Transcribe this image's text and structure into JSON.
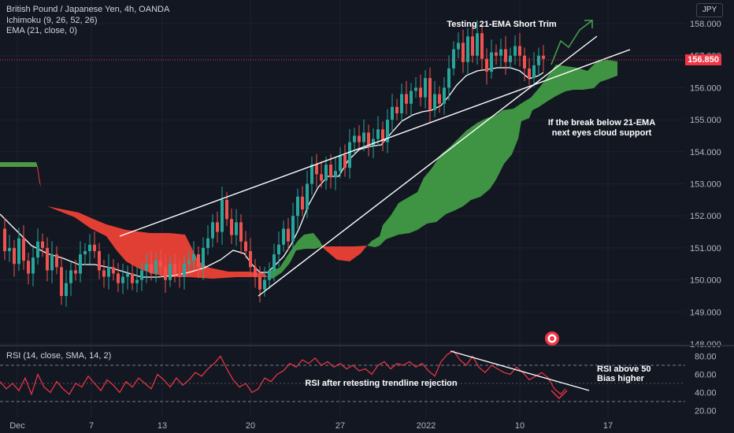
{
  "header": {
    "title": "British Pound / Japanese Yen, 4h, OANDA",
    "ichimoku": "Ichimoku (9, 26, 52, 26)",
    "ema": "EMA (21, close, 0)",
    "currency": "JPY"
  },
  "price_panel": {
    "last_price": "156.850",
    "y_ticks": [
      "158.000",
      "157.000",
      "156.000",
      "155.000",
      "154.000",
      "153.000",
      "152.000",
      "151.000",
      "150.000",
      "149.000",
      "148.000"
    ],
    "annotations": {
      "top": "Testing 21-EMA Short Trim",
      "cloud_line1": "If the break below 21-EMA",
      "cloud_line2": "next eyes cloud support"
    }
  },
  "rsi_panel": {
    "label": "RSI (14, close, SMA, 14, 2)",
    "y_ticks": [
      "80.00",
      "60.00",
      "40.00",
      "20.00"
    ],
    "annotations": {
      "trendline": "RSI after retesting trendline rejection",
      "bias_line1": "RSI above 50",
      "bias_line2": "Bias higher"
    }
  },
  "x_axis": {
    "ticks": [
      "Dec",
      "7",
      "13",
      "20",
      "27",
      "2022",
      "10",
      "17"
    ]
  },
  "colors": {
    "background": "#131722",
    "bull": "#26a69a",
    "bear": "#ef5350",
    "cloud_bull": "#43a047",
    "cloud_bear": "#f44336",
    "rsi": "#f23645",
    "price_tag": "#f23645"
  },
  "chart_data": {
    "type": "candlestick",
    "symbol": "GBPJPY",
    "timeframe": "4h",
    "ylim": [
      148.0,
      158.4
    ],
    "ohlc_close_path": [
      [
        0,
        151.6
      ],
      [
        6,
        150.9
      ],
      [
        12,
        151.0
      ],
      [
        18,
        150.5
      ],
      [
        24,
        151.3
      ],
      [
        30,
        150.6
      ],
      [
        36,
        150.2
      ],
      [
        42,
        150.7
      ],
      [
        48,
        151.2
      ],
      [
        54,
        151.0
      ],
      [
        60,
        150.3
      ],
      [
        66,
        150.8
      ],
      [
        72,
        150.4
      ],
      [
        78,
        149.5
      ],
      [
        84,
        149.9
      ],
      [
        90,
        150.3
      ],
      [
        96,
        150.2
      ],
      [
        102,
        150.8
      ],
      [
        108,
        150.9
      ],
      [
        114,
        151.1
      ],
      [
        120,
        150.9
      ],
      [
        126,
        150.3
      ],
      [
        132,
        150.1
      ],
      [
        138,
        150.4
      ],
      [
        144,
        150.2
      ],
      [
        150,
        149.9
      ],
      [
        156,
        150.1
      ],
      [
        162,
        150.2
      ],
      [
        168,
        149.9
      ],
      [
        174,
        150.0
      ],
      [
        180,
        150.3
      ],
      [
        186,
        150.5
      ],
      [
        192,
        150.2
      ],
      [
        198,
        150.6
      ],
      [
        204,
        150.4
      ],
      [
        210,
        150.0
      ],
      [
        216,
        150.5
      ],
      [
        222,
        150.2
      ],
      [
        228,
        150.1
      ],
      [
        234,
        150.5
      ],
      [
        240,
        150.6
      ],
      [
        246,
        150.8
      ],
      [
        252,
        150.4
      ],
      [
        258,
        151.0
      ],
      [
        264,
        151.3
      ],
      [
        270,
        151.8
      ],
      [
        276,
        151.5
      ],
      [
        282,
        152.5
      ],
      [
        288,
        151.9
      ],
      [
        294,
        151.4
      ],
      [
        300,
        151.8
      ],
      [
        306,
        151.2
      ],
      [
        312,
        150.9
      ],
      [
        318,
        150.4
      ],
      [
        324,
        150.1
      ],
      [
        330,
        149.7
      ],
      [
        336,
        150.0
      ],
      [
        342,
        150.3
      ],
      [
        348,
        150.8
      ],
      [
        354,
        151.1
      ],
      [
        360,
        151.6
      ],
      [
        366,
        151.2
      ],
      [
        372,
        152.0
      ],
      [
        378,
        152.6
      ],
      [
        384,
        152.2
      ],
      [
        390,
        153.0
      ],
      [
        396,
        153.6
      ],
      [
        402,
        153.3
      ],
      [
        408,
        153.1
      ],
      [
        414,
        153.6
      ],
      [
        420,
        153.2
      ],
      [
        426,
        153.4
      ],
      [
        432,
        153.9
      ],
      [
        438,
        153.5
      ],
      [
        444,
        154.3
      ],
      [
        450,
        154.5
      ],
      [
        456,
        154.3
      ],
      [
        462,
        154.6
      ],
      [
        468,
        154.2
      ],
      [
        474,
        154.4
      ],
      [
        480,
        154.7
      ],
      [
        486,
        154.3
      ],
      [
        492,
        155.0
      ],
      [
        498,
        155.4
      ],
      [
        504,
        155.2
      ],
      [
        510,
        155.8
      ],
      [
        516,
        155.5
      ],
      [
        522,
        155.9
      ],
      [
        528,
        156.0
      ],
      [
        534,
        155.7
      ],
      [
        540,
        156.3
      ],
      [
        546,
        155.3
      ],
      [
        552,
        155.8
      ],
      [
        558,
        155.5
      ],
      [
        564,
        156.0
      ],
      [
        570,
        156.6
      ],
      [
        576,
        157.2
      ],
      [
        582,
        157.4
      ],
      [
        588,
        156.8
      ],
      [
        594,
        157.6
      ],
      [
        600,
        157.0
      ],
      [
        606,
        157.7
      ],
      [
        612,
        156.9
      ],
      [
        618,
        156.5
      ],
      [
        624,
        157.1
      ],
      [
        630,
        157.0
      ],
      [
        636,
        157.2
      ],
      [
        642,
        156.8
      ],
      [
        648,
        157.0
      ],
      [
        654,
        157.3
      ],
      [
        660,
        157.0
      ],
      [
        666,
        156.6
      ],
      [
        672,
        156.3
      ],
      [
        678,
        156.7
      ],
      [
        684,
        157.0
      ],
      [
        690,
        156.9
      ]
    ],
    "rsi_path": [
      [
        0,
        52
      ],
      [
        8,
        44
      ],
      [
        16,
        50
      ],
      [
        24,
        42
      ],
      [
        32,
        56
      ],
      [
        40,
        38
      ],
      [
        48,
        60
      ],
      [
        56,
        46
      ],
      [
        64,
        40
      ],
      [
        72,
        52
      ],
      [
        80,
        44
      ],
      [
        88,
        38
      ],
      [
        96,
        50
      ],
      [
        104,
        46
      ],
      [
        112,
        58
      ],
      [
        120,
        50
      ],
      [
        128,
        42
      ],
      [
        136,
        54
      ],
      [
        144,
        48
      ],
      [
        152,
        40
      ],
      [
        160,
        52
      ],
      [
        168,
        46
      ],
      [
        176,
        56
      ],
      [
        184,
        50
      ],
      [
        192,
        44
      ],
      [
        200,
        60
      ],
      [
        208,
        54
      ],
      [
        216,
        46
      ],
      [
        224,
        56
      ],
      [
        232,
        48
      ],
      [
        240,
        54
      ],
      [
        248,
        62
      ],
      [
        256,
        58
      ],
      [
        264,
        66
      ],
      [
        272,
        72
      ],
      [
        280,
        80
      ],
      [
        288,
        66
      ],
      [
        296,
        54
      ],
      [
        304,
        46
      ],
      [
        312,
        50
      ],
      [
        320,
        40
      ],
      [
        328,
        44
      ],
      [
        336,
        56
      ],
      [
        344,
        52
      ],
      [
        352,
        60
      ],
      [
        360,
        64
      ],
      [
        368,
        72
      ],
      [
        376,
        68
      ],
      [
        384,
        76
      ],
      [
        392,
        72
      ],
      [
        400,
        78
      ],
      [
        408,
        70
      ],
      [
        416,
        74
      ],
      [
        424,
        68
      ],
      [
        432,
        72
      ],
      [
        440,
        66
      ],
      [
        448,
        70
      ],
      [
        456,
        64
      ],
      [
        464,
        66
      ],
      [
        472,
        60
      ],
      [
        480,
        70
      ],
      [
        488,
        74
      ],
      [
        496,
        66
      ],
      [
        504,
        72
      ],
      [
        512,
        70
      ],
      [
        520,
        74
      ],
      [
        528,
        68
      ],
      [
        536,
        72
      ],
      [
        544,
        64
      ],
      [
        552,
        58
      ],
      [
        560,
        74
      ],
      [
        568,
        82
      ],
      [
        576,
        86
      ],
      [
        584,
        76
      ],
      [
        592,
        70
      ],
      [
        600,
        80
      ],
      [
        608,
        68
      ],
      [
        616,
        62
      ],
      [
        624,
        70
      ],
      [
        632,
        66
      ],
      [
        640,
        62
      ],
      [
        648,
        60
      ],
      [
        656,
        68
      ],
      [
        664,
        62
      ],
      [
        672,
        54
      ],
      [
        680,
        58
      ],
      [
        688,
        62
      ],
      [
        696,
        56
      ],
      [
        704,
        44
      ],
      [
        712,
        38
      ],
      [
        718,
        44
      ]
    ],
    "rsi_levels": [
      70,
      50,
      30
    ]
  }
}
